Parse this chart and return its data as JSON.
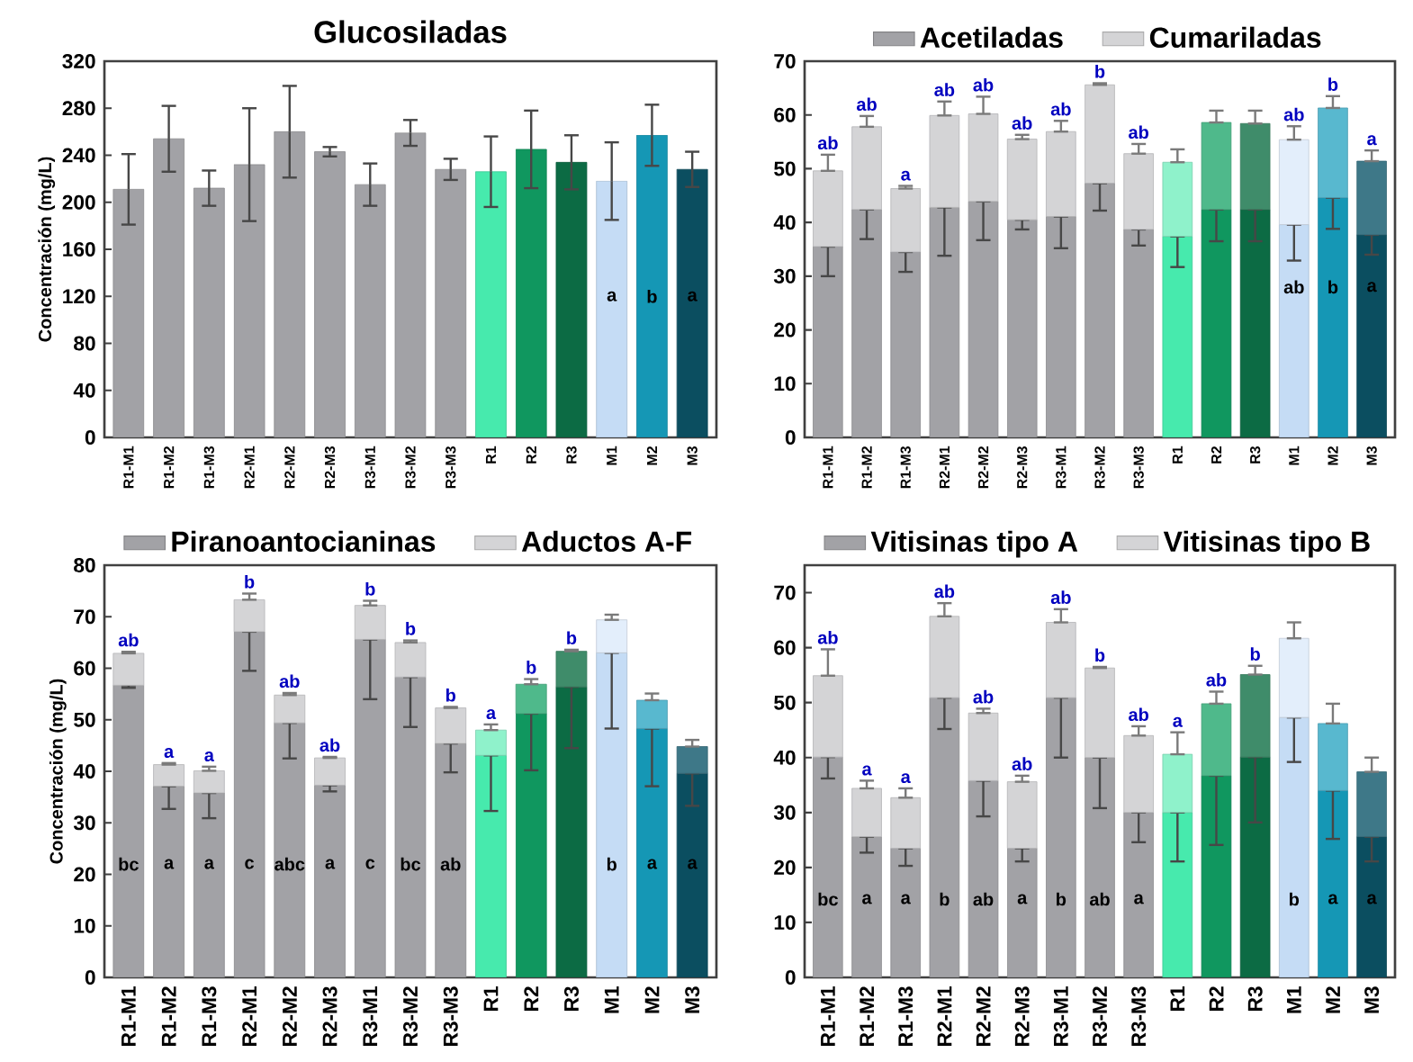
{
  "chart_data": [
    {
      "type": "bar",
      "title": "Glucosiladas",
      "ylabel": "Concentración (mg/L)",
      "categories": [
        "R1-M1",
        "R1-M2",
        "R1-M3",
        "R2-M1",
        "R2-M2",
        "R2-M3",
        "R3-M1",
        "R3-M2",
        "R3-M3",
        "R1",
        "R2",
        "R3",
        "M1",
        "M2",
        "M3"
      ],
      "values": [
        211,
        254,
        212,
        232,
        260,
        243,
        215,
        259,
        228,
        226,
        245,
        234,
        218,
        257,
        228
      ],
      "errors": [
        30,
        28,
        15,
        48,
        39,
        4,
        18,
        11,
        9,
        30,
        33,
        23,
        33,
        26,
        15
      ],
      "value_labels": [
        null,
        null,
        null,
        null,
        null,
        null,
        null,
        null,
        null,
        null,
        null,
        null,
        "a",
        "b",
        "a"
      ],
      "colors": [
        "#a2a2a6",
        "#a2a2a6",
        "#a2a2a6",
        "#a2a2a6",
        "#a2a2a6",
        "#a2a2a6",
        "#a2a2a6",
        "#a2a2a6",
        "#a2a2a6",
        "#47eaad",
        "#10975f",
        "#0c6b44",
        "#c5dcf5",
        "#1597b5",
        "#0b4e60"
      ],
      "ylim": [
        0,
        320
      ],
      "yticks": [
        0,
        40,
        80,
        120,
        160,
        200,
        240,
        280,
        320
      ]
    },
    {
      "type": "bar",
      "stacked": true,
      "legend": "top",
      "categories": [
        "R1-M1",
        "R1-M2",
        "R1-M3",
        "R2-M1",
        "R2-M2",
        "R2-M3",
        "R3-M1",
        "R3-M2",
        "R3-M3",
        "R1",
        "R2",
        "R3",
        "M1",
        "M2",
        "M3"
      ],
      "series": [
        {
          "name": "Acetiladas",
          "color": "#a2a2a6",
          "colors": [
            "#a2a2a6",
            "#a2a2a6",
            "#a2a2a6",
            "#a2a2a6",
            "#a2a2a6",
            "#a2a2a6",
            "#a2a2a6",
            "#a2a2a6",
            "#a2a2a6",
            "#47eaad",
            "#10975f",
            "#0c6b44",
            "#c5dcf5",
            "#1597b5",
            "#0b4e60"
          ],
          "values": [
            35.5,
            42.4,
            34.5,
            42.8,
            43.9,
            40.5,
            41.1,
            47.3,
            38.7,
            37.4,
            42.4,
            42.4,
            39.6,
            44.6,
            37.7
          ],
          "errors": [
            [
              30.0,
              35.5
            ],
            [
              36.9,
              42.4
            ],
            [
              30.8,
              34.5
            ],
            [
              33.8,
              42.8
            ],
            [
              36.7,
              43.9
            ],
            [
              38.7,
              40.5
            ],
            [
              35.2,
              41.1
            ],
            [
              42.2,
              47.3
            ],
            [
              35.7,
              38.7
            ],
            [
              31.7,
              37.4
            ],
            [
              36.5,
              42.4
            ],
            [
              36.5,
              42.4
            ],
            [
              32.9,
              39.6
            ],
            [
              38.8,
              44.6
            ],
            [
              34.0,
              37.7
            ]
          ],
          "value_labels": [
            null,
            null,
            null,
            null,
            null,
            null,
            null,
            null,
            null,
            null,
            null,
            null,
            "ab",
            "b",
            "a"
          ]
        },
        {
          "name": "Cumariladas",
          "color": "#d4d4d6",
          "colors": [
            "#d4d4d6",
            "#d4d4d6",
            "#d4d4d6",
            "#d4d4d6",
            "#d4d4d6",
            "#d4d4d6",
            "#d4d4d6",
            "#d4d4d6",
            "#d4d4d6",
            "#8ff2cb",
            "#4fb98b",
            "#3f8c6a",
            "#e3eefb",
            "#58b8cf",
            "#3e7888"
          ],
          "values": [
            14.1,
            15.4,
            11.8,
            17.1,
            16.3,
            15.0,
            15.8,
            18.3,
            14.1,
            13.8,
            16.2,
            16.0,
            15.8,
            16.7,
            13.7
          ],
          "errors": [
            [
              49.6,
              52.6
            ],
            [
              57.8,
              59.8
            ],
            [
              46.3,
              46.8
            ],
            [
              59.9,
              62.5
            ],
            [
              60.2,
              63.4
            ],
            [
              55.5,
              56.3
            ],
            [
              56.9,
              58.9
            ],
            [
              65.6,
              65.9
            ],
            [
              52.8,
              54.6
            ],
            [
              51.2,
              53.6
            ],
            [
              58.6,
              60.8
            ],
            [
              58.4,
              60.8
            ],
            [
              55.4,
              57.9
            ],
            [
              61.3,
              63.5
            ],
            [
              51.4,
              53.4
            ]
          ],
          "value_labels": [
            "ab",
            "ab",
            "a",
            "ab",
            "ab",
            "ab",
            "ab",
            "b",
            "ab",
            null,
            null,
            null,
            "ab",
            "b",
            "a"
          ]
        }
      ],
      "ylim": [
        0,
        70
      ],
      "yticks": [
        0,
        10,
        20,
        30,
        40,
        50,
        60,
        70
      ]
    },
    {
      "type": "bar",
      "stacked": true,
      "legend": "top",
      "ylabel": "Concentración (mg/L)",
      "categories": [
        "R1-M1",
        "R1-M2",
        "R1-M3",
        "R2-M1",
        "R2-M2",
        "R2-M3",
        "R3-M1",
        "R3-M2",
        "R3-M3",
        "R1",
        "R2",
        "R3",
        "M1",
        "M2",
        "M3"
      ],
      "series": [
        {
          "name": "Piranoantocianinas",
          "color": "#a2a2a6",
          "colors": [
            "#a2a2a6",
            "#a2a2a6",
            "#a2a2a6",
            "#a2a2a6",
            "#a2a2a6",
            "#a2a2a6",
            "#a2a2a6",
            "#a2a2a6",
            "#a2a2a6",
            "#47eaad",
            "#10975f",
            "#0c6b44",
            "#c5dcf5",
            "#1597b5",
            "#0b4e60"
          ],
          "values": [
            56.7,
            37.1,
            35.8,
            67.1,
            49.4,
            37.3,
            65.6,
            58.3,
            45.4,
            43.1,
            51.2,
            56.4,
            63.0,
            48.3,
            39.6
          ],
          "errors": [
            [
              56.2,
              56.7
            ],
            [
              32.7,
              37.1
            ],
            [
              30.9,
              35.8
            ],
            [
              59.5,
              67.1
            ],
            [
              42.5,
              49.4
            ],
            [
              36.1,
              37.3
            ],
            [
              54.0,
              65.6
            ],
            [
              48.6,
              58.3
            ],
            [
              39.8,
              45.4
            ],
            [
              32.3,
              43.1
            ],
            [
              40.2,
              51.2
            ],
            [
              44.5,
              56.4
            ],
            [
              48.3,
              63.0
            ],
            [
              37.1,
              48.3
            ],
            [
              33.3,
              39.6
            ]
          ],
          "value_labels": [
            "bc",
            "a",
            "a",
            "c",
            "abc",
            "a",
            "c",
            "bc",
            "ab",
            null,
            null,
            null,
            "b",
            "a",
            "a"
          ]
        },
        {
          "name": "Aductos A-F",
          "color": "#d4d4d6",
          "colors": [
            "#d4d4d6",
            "#d4d4d6",
            "#d4d4d6",
            "#d4d4d6",
            "#d4d4d6",
            "#d4d4d6",
            "#d4d4d6",
            "#d4d4d6",
            "#d4d4d6",
            "#8ff2cb",
            "#4fb98b",
            "#3f8c6a",
            "#e3eefb",
            "#58b8cf",
            "#3e7888"
          ],
          "values": [
            6.2,
            4.2,
            4.3,
            6.2,
            5.4,
            5.3,
            6.6,
            6.7,
            6.9,
            4.9,
            5.7,
            6.9,
            6.4,
            5.5,
            5.2
          ],
          "errors": [
            [
              62.9,
              63.2
            ],
            [
              41.3,
              41.6
            ],
            [
              40.1,
              40.9
            ],
            [
              73.3,
              74.5
            ],
            [
              54.8,
              55.2
            ],
            [
              42.6,
              42.8
            ],
            [
              72.2,
              73.1
            ],
            [
              65.0,
              65.4
            ],
            [
              52.3,
              52.5
            ],
            [
              48.0,
              49.1
            ],
            [
              56.9,
              57.9
            ],
            [
              63.3,
              63.6
            ],
            [
              69.4,
              70.4
            ],
            [
              53.8,
              55.1
            ],
            [
              44.8,
              46.1
            ]
          ],
          "value_labels": [
            "ab",
            "a",
            "a",
            "b",
            "ab",
            "ab",
            "b",
            "b",
            "b",
            "a",
            "b",
            "b",
            null,
            null,
            null
          ]
        }
      ],
      "ylim": [
        0,
        80
      ],
      "yticks": [
        0,
        10,
        20,
        30,
        40,
        50,
        60,
        70,
        80
      ]
    },
    {
      "type": "bar",
      "stacked": true,
      "legend": "top",
      "categories": [
        "R1-M1",
        "R1-M2",
        "R1-M3",
        "R2-M1",
        "R2-M2",
        "R2-M3",
        "R3-M1",
        "R3-M2",
        "R3-M3",
        "R1",
        "R2",
        "R3",
        "M1",
        "M2",
        "M3"
      ],
      "series": [
        {
          "name": "Vitisinas tipo A",
          "color": "#a2a2a6",
          "colors": [
            "#a2a2a6",
            "#a2a2a6",
            "#a2a2a6",
            "#a2a2a6",
            "#a2a2a6",
            "#a2a2a6",
            "#a2a2a6",
            "#a2a2a6",
            "#a2a2a6",
            "#47eaad",
            "#10975f",
            "#0c6b44",
            "#c5dcf5",
            "#1597b5",
            "#0b4e60"
          ],
          "values": [
            40.1,
            25.6,
            23.5,
            50.9,
            35.8,
            23.5,
            50.9,
            40.0,
            30.0,
            30.0,
            36.7,
            40.1,
            47.3,
            34.0,
            25.6
          ],
          "errors": [
            [
              36.2,
              40.1
            ],
            [
              22.7,
              25.6
            ],
            [
              20.3,
              23.5
            ],
            [
              45.2,
              50.9
            ],
            [
              29.3,
              35.8
            ],
            [
              21.1,
              23.5
            ],
            [
              40.0,
              50.9
            ],
            [
              30.8,
              40.0
            ],
            [
              24.6,
              30.0
            ],
            [
              21.1,
              30.0
            ],
            [
              24.1,
              36.7
            ],
            [
              28.2,
              40.1
            ],
            [
              39.2,
              47.3
            ],
            [
              25.2,
              34.0
            ],
            [
              21.1,
              25.6
            ]
          ],
          "value_labels": [
            "bc",
            "a",
            "a",
            "b",
            "ab",
            "a",
            "b",
            "ab",
            "a",
            null,
            null,
            null,
            "b",
            "a",
            "a"
          ]
        },
        {
          "name": "Vitisinas tipo B",
          "color": "#d4d4d6",
          "colors": [
            "#d4d4d6",
            "#d4d4d6",
            "#d4d4d6",
            "#d4d4d6",
            "#d4d4d6",
            "#d4d4d6",
            "#d4d4d6",
            "#d4d4d6",
            "#d4d4d6",
            "#8ff2cb",
            "#4fb98b",
            "#3f8c6a",
            "#e3eefb",
            "#58b8cf",
            "#3e7888"
          ],
          "values": [
            14.8,
            8.8,
            9.2,
            14.8,
            12.3,
            12.1,
            13.7,
            16.3,
            14.0,
            10.6,
            13.1,
            15.0,
            14.4,
            12.2,
            11.8
          ],
          "errors": [
            [
              54.9,
              59.7
            ],
            [
              34.4,
              35.8
            ],
            [
              32.7,
              34.4
            ],
            [
              65.7,
              68.1
            ],
            [
              48.1,
              48.9
            ],
            [
              35.6,
              36.7
            ],
            [
              64.6,
              67.0
            ],
            [
              56.3,
              56.5
            ],
            [
              44.0,
              45.7
            ],
            [
              40.6,
              44.6
            ],
            [
              49.8,
              52.0
            ],
            [
              55.1,
              56.7
            ],
            [
              61.7,
              64.6
            ],
            [
              46.2,
              49.8
            ],
            [
              37.4,
              40.0
            ]
          ],
          "value_labels": [
            "ab",
            "a",
            "a",
            "ab",
            "ab",
            "ab",
            "ab",
            "b",
            "ab",
            "a",
            "ab",
            "b",
            null,
            null,
            null
          ]
        }
      ],
      "ylim": [
        0,
        75
      ],
      "yticks": [
        0,
        10,
        20,
        30,
        40,
        50,
        60,
        70
      ]
    }
  ]
}
